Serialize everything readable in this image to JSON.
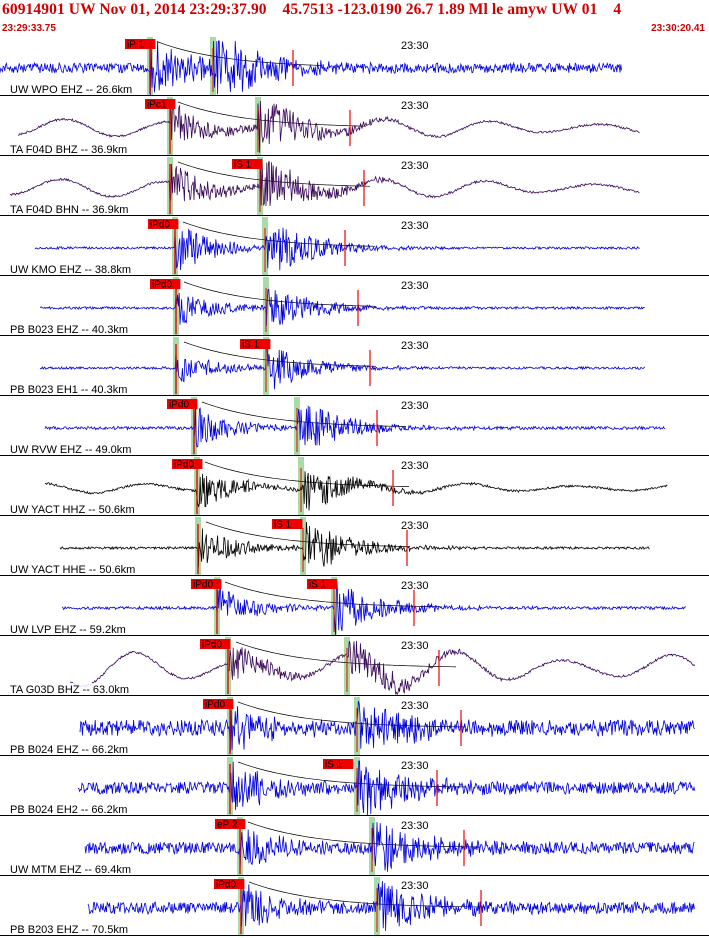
{
  "header": {
    "title": "60914901 UW Nov 01, 2014 23:29:37.90    45.7513 -123.0190 26.7 1.89 Ml le amyw UW 01    4",
    "start_time": "23:29:33.75",
    "end_time": "23:30:20.41"
  },
  "colors": {
    "blue_trace": "#0000dd",
    "purple_trace": "#3a0a5a",
    "black_trace": "#000000",
    "pick_red": "#ee0000",
    "phase_band_green": "#a8dba8",
    "header_red": "#d00000"
  },
  "chart_data": {
    "type": "seismogram_record_section",
    "time_range": [
      "23:29:33.75",
      "23:30:20.41"
    ],
    "time_marker_label": "23:30",
    "traces": [
      {
        "label": "UW WPO EHZ -- 26.6km",
        "color": "blue",
        "p_pick": "iP 1",
        "s_pick": ""
      },
      {
        "label": "TA F04D BHZ -- 36.9km",
        "color": "purple",
        "p_pick": "iPc1",
        "s_pick": ""
      },
      {
        "label": "TA F04D BHN -- 36.9km",
        "color": "purple",
        "p_pick": "",
        "s_pick": "iS 1"
      },
      {
        "label": "UW KMO EHZ -- 38.8km",
        "color": "blue",
        "p_pick": "iPd0",
        "s_pick": ""
      },
      {
        "label": "PB B023 EHZ -- 40.3km",
        "color": "blue",
        "p_pick": "iPd0",
        "s_pick": ""
      },
      {
        "label": "PB B023 EH1 -- 40.3km",
        "color": "blue",
        "p_pick": "",
        "s_pick": "iS 1"
      },
      {
        "label": "UW RVW EHZ -- 49.0km",
        "color": "blue",
        "p_pick": "iPd0",
        "s_pick": ""
      },
      {
        "label": "UW YACT HHZ -- 50.6km",
        "color": "black",
        "p_pick": "iPd0",
        "s_pick": ""
      },
      {
        "label": "UW YACT HHE -- 50.6km",
        "color": "black",
        "p_pick": "",
        "s_pick": "iS 1"
      },
      {
        "label": "UW LVP EHZ -- 59.2km",
        "color": "blue",
        "p_pick": "iPd0",
        "s_pick": "iS 1"
      },
      {
        "label": "TA G03D BHZ -- 63.0km",
        "color": "purple",
        "p_pick": "iPd0",
        "s_pick": ""
      },
      {
        "label": "PB B024 EHZ -- 66.2km",
        "color": "blue",
        "p_pick": "iPd0",
        "s_pick": ""
      },
      {
        "label": "PB B024 EH2 -- 66.2km",
        "color": "blue",
        "p_pick": "",
        "s_pick": "iS 1"
      },
      {
        "label": "UW MTM EHZ -- 69.4km",
        "color": "blue",
        "p_pick": "eP 2",
        "s_pick": ""
      },
      {
        "label": "PB B203 EHZ -- 70.5km",
        "color": "blue",
        "p_pick": "iPd0",
        "s_pick": ""
      }
    ]
  }
}
